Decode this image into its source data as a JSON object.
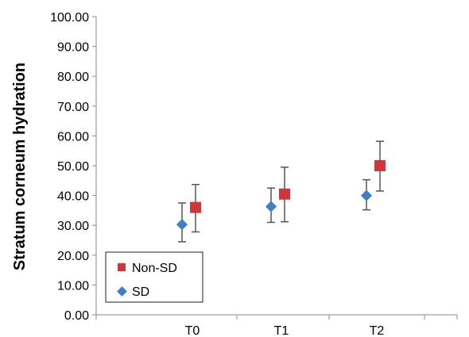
{
  "chart_data": {
    "type": "scatter",
    "title": "",
    "xlabel": "",
    "ylabel": "Stratum corneum hydration",
    "categories": [
      "T0",
      "T1",
      "T2"
    ],
    "ylim": [
      0,
      100
    ],
    "yticks": [
      "0.00",
      "10.00",
      "20.00",
      "30.00",
      "40.00",
      "50.00",
      "60.00",
      "70.00",
      "80.00",
      "90.00",
      "100.00"
    ],
    "series": [
      {
        "name": "Non-SD",
        "color": "#d0363a",
        "marker": "square",
        "values": [
          36.0,
          40.5,
          50.0
        ],
        "err_low": [
          27.8,
          31.2,
          41.5
        ],
        "err_high": [
          43.7,
          49.5,
          58.2
        ]
      },
      {
        "name": "SD",
        "color": "#3f7fc8",
        "marker": "diamond",
        "values": [
          30.3,
          36.3,
          40.0
        ],
        "err_low": [
          24.5,
          31.0,
          35.2
        ],
        "err_high": [
          37.5,
          42.5,
          45.3
        ]
      }
    ],
    "legend_position": "bottom-left",
    "grid": false
  }
}
